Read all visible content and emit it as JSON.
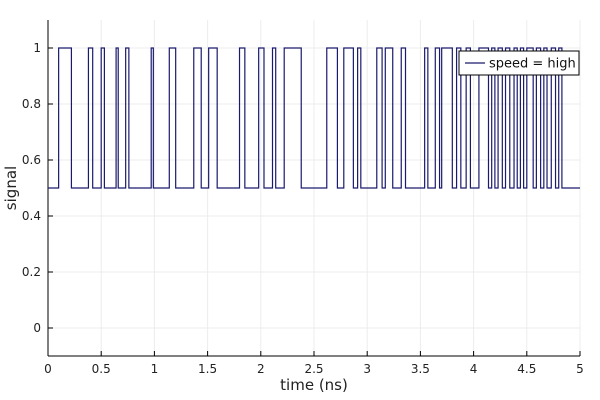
{
  "chart_data": {
    "type": "line",
    "xlabel": "time (ns)",
    "ylabel": "signal",
    "xlim": [
      0,
      5
    ],
    "ylim": [
      -0.1,
      1.1
    ],
    "xticks": [
      0,
      0.5,
      1,
      1.5,
      2,
      2.5,
      3,
      3.5,
      4,
      4.5,
      5
    ],
    "xtick_labels": [
      "0",
      "0.5",
      "1",
      "1.5",
      "2",
      "2.5",
      "3",
      "3.5",
      "4",
      "4.5",
      "5"
    ],
    "yticks": [
      0,
      0.2,
      0.4,
      0.6,
      0.8,
      1
    ],
    "ytick_labels": [
      "0",
      "0.2",
      "0.4",
      "0.6",
      "0.8",
      "1"
    ],
    "grid": true,
    "legend_position": "top-right",
    "colors": {
      "series": "#1a1a6e",
      "grid": "#ececec",
      "axis": "#000000"
    },
    "series": [
      {
        "name": "speed = high",
        "step": "post",
        "x": [
          0,
          0.1,
          0.22,
          0.38,
          0.42,
          0.5,
          0.53,
          0.64,
          0.66,
          0.73,
          0.76,
          0.97,
          0.99,
          1.14,
          1.2,
          1.37,
          1.44,
          1.51,
          1.59,
          1.8,
          1.85,
          1.98,
          2.03,
          2.11,
          2.14,
          2.22,
          2.38,
          2.62,
          2.72,
          2.78,
          2.87,
          2.91,
          2.94,
          3.09,
          3.14,
          3.17,
          3.24,
          3.32,
          3.36,
          3.54,
          3.57,
          3.64,
          3.68,
          3.7,
          3.8,
          3.84,
          3.88,
          3.93,
          3.97,
          4.05,
          4.14,
          4.17,
          4.2,
          4.23,
          4.27,
          4.3,
          4.34,
          4.38,
          4.41,
          4.44,
          4.47,
          4.5,
          4.56,
          4.59,
          4.63,
          4.66,
          4.69,
          4.73,
          4.77,
          4.8,
          4.83,
          4.88,
          5.0
        ],
        "y": [
          0.5,
          1,
          0.5,
          1,
          0.5,
          1,
          0.5,
          1,
          0.5,
          1,
          0.5,
          1,
          0.5,
          1,
          0.5,
          1,
          0.5,
          1,
          0.5,
          1,
          0.5,
          1,
          0.5,
          1,
          0.5,
          1,
          0.5,
          1,
          0.5,
          1,
          0.5,
          1,
          0.5,
          1,
          0.5,
          1,
          0.5,
          1,
          0.5,
          1,
          0.5,
          1,
          0.5,
          1,
          0.5,
          1,
          0.5,
          1,
          0.5,
          1,
          0.5,
          1,
          0.5,
          1,
          0.5,
          1,
          0.5,
          1,
          0.5,
          1,
          0.5,
          1,
          0.5,
          1,
          0.5,
          1,
          0.5,
          1,
          0.5,
          1,
          0.5,
          0.5,
          0.5
        ]
      }
    ]
  }
}
